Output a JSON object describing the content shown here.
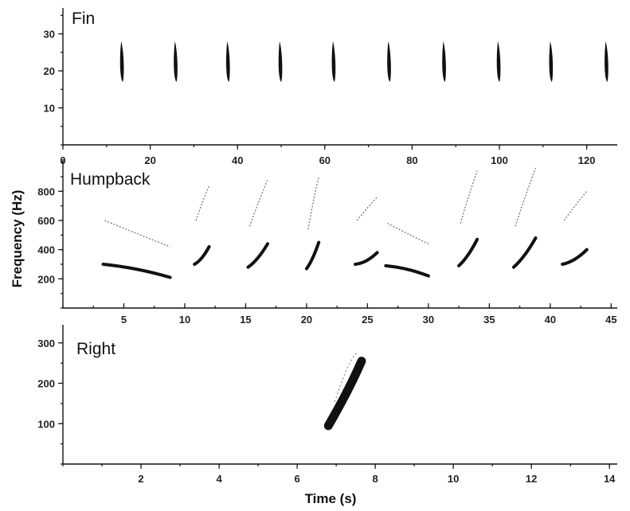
{
  "chart_data": [
    {
      "type": "scatter",
      "panel_title": "Fin",
      "x_axis_ticks": [
        0,
        20,
        40,
        60,
        80,
        100,
        120
      ],
      "xlim": [
        0,
        127
      ],
      "y_axis_ticks": [
        10,
        20,
        30
      ],
      "ylim": [
        0,
        37
      ],
      "calls": [
        {
          "t": 13.5,
          "f_low": 17,
          "f_high": 28
        },
        {
          "t": 25.8,
          "f_low": 17,
          "f_high": 28
        },
        {
          "t": 37.8,
          "f_low": 17,
          "f_high": 28
        },
        {
          "t": 49.8,
          "f_low": 17,
          "f_high": 28
        },
        {
          "t": 62.0,
          "f_low": 17,
          "f_high": 28
        },
        {
          "t": 74.7,
          "f_low": 17,
          "f_high": 28
        },
        {
          "t": 87.3,
          "f_low": 17,
          "f_high": 28
        },
        {
          "t": 99.8,
          "f_low": 17,
          "f_high": 28
        },
        {
          "t": 111.8,
          "f_low": 17,
          "f_high": 28
        },
        {
          "t": 124.5,
          "f_low": 17,
          "f_high": 28
        }
      ]
    },
    {
      "type": "scatter",
      "panel_title": "Humpback",
      "x_axis_ticks": [
        5,
        10,
        15,
        20,
        25,
        30,
        35,
        40,
        45
      ],
      "xlim": [
        0,
        45.5
      ],
      "y_axis_ticks": [
        200,
        400,
        600,
        800
      ],
      "ylim": [
        0,
        1020
      ],
      "units": [
        {
          "t_start": 3.3,
          "t_end": 8.8,
          "f_start": 300,
          "f_end": 210
        },
        {
          "t_start": 10.8,
          "t_end": 12.0,
          "f_start": 300,
          "f_end": 420
        },
        {
          "t_start": 15.2,
          "t_end": 16.8,
          "f_start": 280,
          "f_end": 440
        },
        {
          "t_start": 20.0,
          "t_end": 21.0,
          "f_start": 270,
          "f_end": 450
        },
        {
          "t_start": 24.0,
          "t_end": 25.8,
          "f_start": 300,
          "f_end": 380
        },
        {
          "t_start": 26.5,
          "t_end": 30.0,
          "f_start": 290,
          "f_end": 220
        },
        {
          "t_start": 32.5,
          "t_end": 34.0,
          "f_start": 290,
          "f_end": 470
        },
        {
          "t_start": 37.0,
          "t_end": 38.8,
          "f_start": 280,
          "f_end": 480
        },
        {
          "t_start": 41.0,
          "t_end": 43.0,
          "f_start": 300,
          "f_end": 400
        }
      ]
    },
    {
      "type": "scatter",
      "panel_title": "Right",
      "x_axis_ticks": [
        2,
        4,
        6,
        8,
        10,
        12,
        14
      ],
      "xlim": [
        0,
        14.2
      ],
      "y_axis_ticks": [
        100,
        200,
        300
      ],
      "ylim": [
        0,
        345
      ],
      "upsweep": {
        "t_start": 6.8,
        "t_end": 7.65,
        "f_start": 95,
        "f_end": 255
      }
    }
  ],
  "labels": {
    "ylabel": "Frequency (Hz)",
    "xlabel": "Time (s)"
  },
  "colors": {
    "axis": "#111111",
    "signal": "#111111",
    "background": "#ffffff"
  }
}
